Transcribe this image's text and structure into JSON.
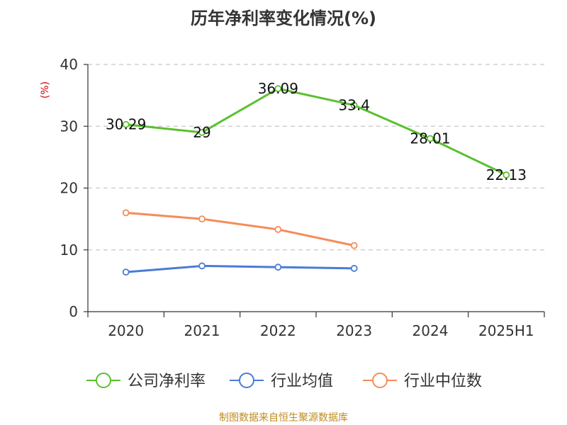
{
  "chart_data": {
    "type": "line",
    "title": "历年净利率变化情况(%)",
    "ylabel": "(%)",
    "xlabel": "",
    "categories": [
      "2020",
      "2021",
      "2022",
      "2023",
      "2024",
      "2025H1"
    ],
    "ylim": [
      0,
      40
    ],
    "yticks": [
      0,
      10,
      20,
      30,
      40
    ],
    "grid": "horizontal-dashed",
    "legend_position": "bottom",
    "series": [
      {
        "name": "公司净利率",
        "color": "#5ac02e",
        "values": [
          30.29,
          29,
          36.09,
          33.4,
          28.01,
          22.13
        ],
        "labels": [
          "30.29",
          "29",
          "36.09",
          "33.4",
          "28.01",
          "22.13"
        ]
      },
      {
        "name": "行业均值",
        "color": "#4a7bd6",
        "values": [
          6.4,
          7.4,
          7.2,
          7.0,
          null,
          null
        ]
      },
      {
        "name": "行业中位数",
        "color": "#f58c5a",
        "values": [
          16.0,
          15.0,
          13.3,
          10.7,
          null,
          null
        ]
      }
    ]
  },
  "footer": {
    "source": "制图数据来自恒生聚源数据库"
  }
}
